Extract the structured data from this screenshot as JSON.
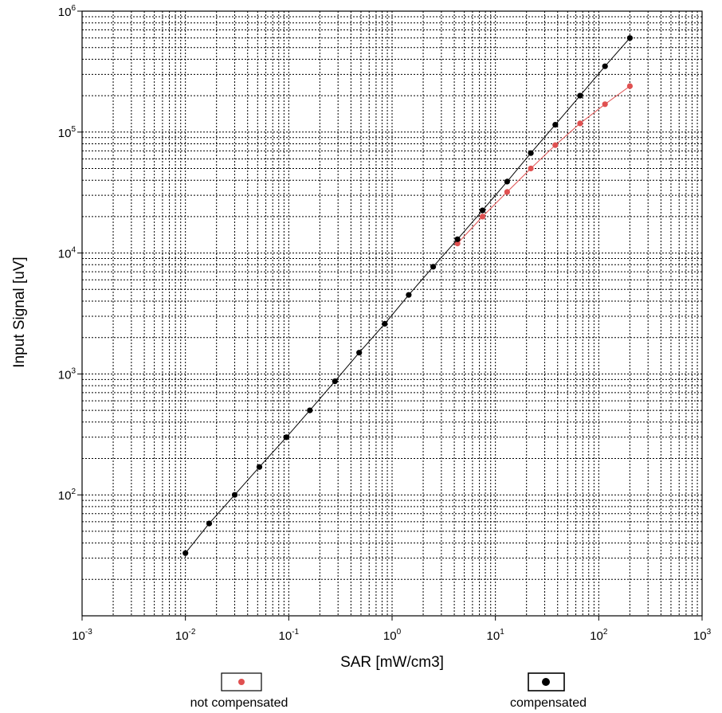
{
  "chart_data": {
    "type": "scatter",
    "title": "",
    "xlabel": "SAR [mW/cm3]",
    "ylabel": "Input Signal [uV]",
    "x_scale": "log",
    "y_scale": "log",
    "xlim": [
      0.001,
      1000
    ],
    "ylim": [
      10,
      1000000
    ],
    "x_ticks": [
      {
        "base": "10",
        "exp": "-3"
      },
      {
        "base": "10",
        "exp": "-2"
      },
      {
        "base": "10",
        "exp": "-1"
      },
      {
        "base": "10",
        "exp": "0"
      },
      {
        "base": "10",
        "exp": "1"
      },
      {
        "base": "10",
        "exp": "2"
      },
      {
        "base": "10",
        "exp": "3"
      }
    ],
    "y_ticks": [
      {
        "base": "10",
        "exp": "2"
      },
      {
        "base": "10",
        "exp": "3"
      },
      {
        "base": "10",
        "exp": "4"
      },
      {
        "base": "10",
        "exp": "5"
      },
      {
        "base": "10",
        "exp": "6"
      }
    ],
    "grid": true,
    "legend_position": "bottom",
    "series": [
      {
        "name": "compensated",
        "color": "#000000",
        "marker": "circle",
        "line": true,
        "x": [
          0.01,
          0.017,
          0.03,
          0.052,
          0.095,
          0.16,
          0.28,
          0.48,
          0.85,
          1.45,
          2.5,
          4.3,
          7.5,
          13,
          22,
          38,
          66,
          115,
          200
        ],
        "y": [
          33,
          58,
          100,
          170,
          300,
          500,
          870,
          1500,
          2600,
          4500,
          7700,
          13000,
          22500,
          39000,
          67000,
          115000,
          200000,
          350000,
          600000
        ]
      },
      {
        "name": "not compensated",
        "color": "#e05050",
        "marker": "circle",
        "line": true,
        "x": [
          4.3,
          7.5,
          13,
          22,
          38,
          66,
          115,
          200
        ],
        "y": [
          12000,
          20000,
          32000,
          50000,
          78000,
          118000,
          170000,
          240000
        ]
      }
    ]
  },
  "legend": {
    "items": [
      {
        "label": "not compensated"
      },
      {
        "label": "compensated"
      }
    ]
  }
}
